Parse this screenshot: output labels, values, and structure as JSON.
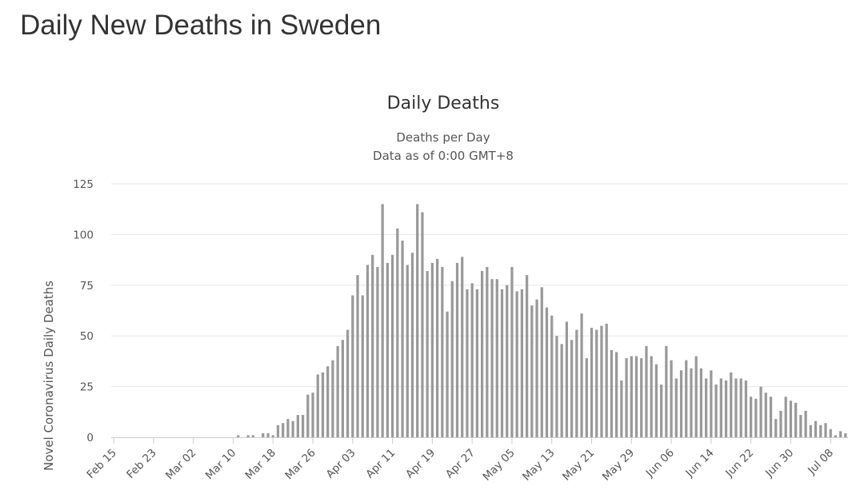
{
  "page": {
    "title": "Daily New Deaths in Sweden"
  },
  "chart_data": {
    "type": "bar",
    "title": "Daily Deaths",
    "subtitle_lines": [
      "Deaths per Day",
      "Data as of 0:00 GMT+8"
    ],
    "ylabel": "Novel Coronavirus Daily Deaths",
    "xlabel": "",
    "ylim": [
      0,
      125
    ],
    "yticks": [
      0,
      25,
      50,
      75,
      100,
      125
    ],
    "grid": true,
    "legend": "none",
    "bar_color": "#999999",
    "start_date": "Feb 15",
    "xtick_labels": [
      "Feb 15",
      "Feb 23",
      "Mar 02",
      "Mar 10",
      "Mar 18",
      "Mar 26",
      "Apr 03",
      "Apr 11",
      "Apr 19",
      "Apr 27",
      "May 05",
      "May 13",
      "May 21",
      "May 29",
      "Jun 06",
      "Jun 14",
      "Jun 22",
      "Jun 30",
      "Jul 08"
    ],
    "values": [
      0,
      0,
      0,
      0,
      0,
      0,
      0,
      0,
      0,
      0,
      0,
      0,
      0,
      0,
      0,
      0,
      0,
      0,
      0,
      0,
      0,
      0,
      0,
      0,
      0,
      1,
      0,
      1,
      1,
      0,
      2,
      2,
      1,
      6,
      7,
      9,
      8,
      11,
      11,
      21,
      22,
      31,
      32,
      35,
      38,
      45,
      48,
      53,
      70,
      80,
      70,
      85,
      90,
      84,
      115,
      86,
      90,
      103,
      97,
      85,
      91,
      115,
      111,
      82,
      86,
      88,
      84,
      62,
      77,
      86,
      89,
      73,
      76,
      73,
      82,
      84,
      78,
      78,
      73,
      75,
      84,
      72,
      73,
      80,
      65,
      68,
      74,
      64,
      60,
      50,
      46,
      57,
      48,
      53,
      61,
      39,
      54,
      53,
      55,
      56,
      43,
      42,
      28,
      39,
      40,
      40,
      39,
      45,
      40,
      36,
      26,
      45,
      38,
      29,
      33,
      38,
      34,
      40,
      34,
      29,
      33,
      26,
      29,
      28,
      32,
      29,
      29,
      28,
      20,
      19,
      25,
      22,
      20,
      9,
      13,
      20,
      18,
      17,
      11,
      13,
      6,
      8,
      6,
      7,
      4,
      1,
      3,
      2
    ]
  }
}
